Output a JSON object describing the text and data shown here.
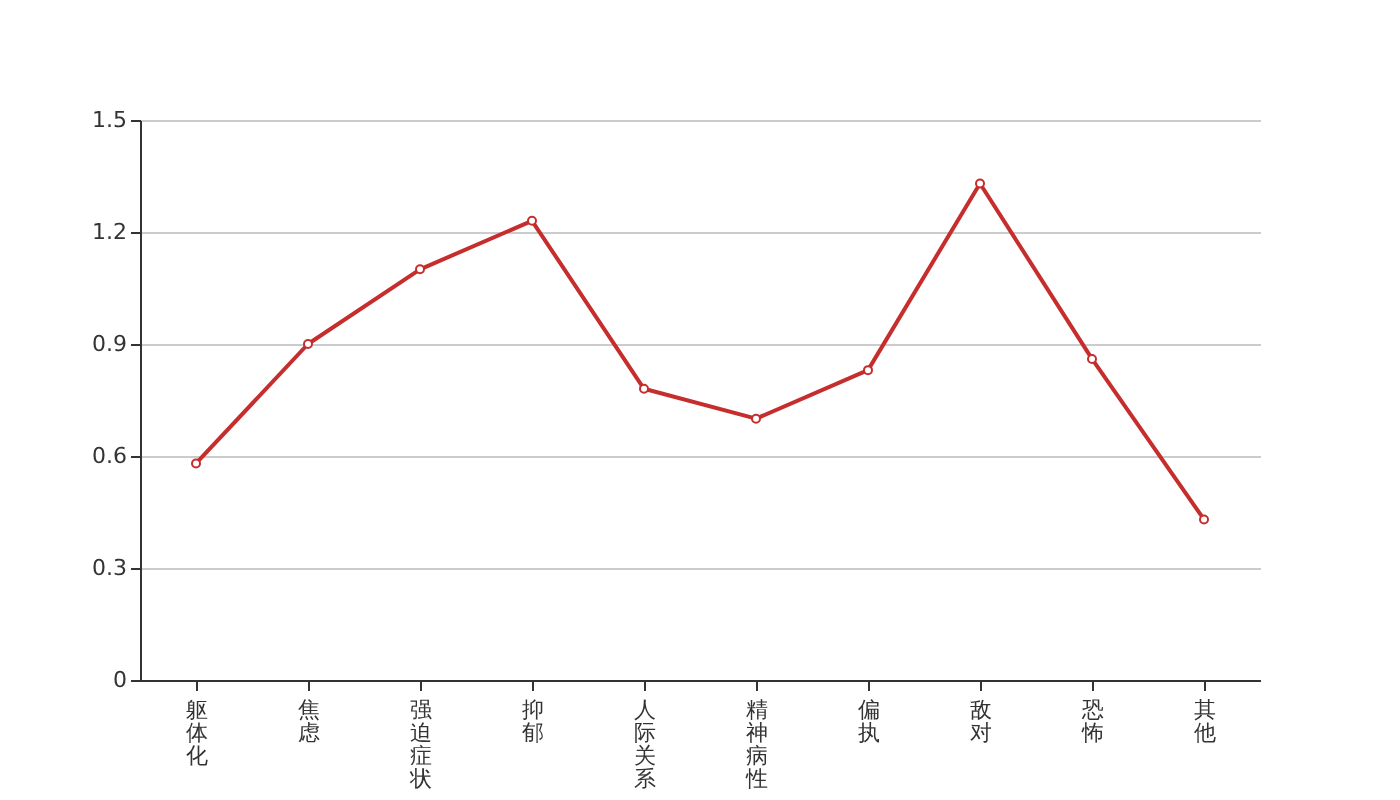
{
  "chart_data": {
    "type": "line",
    "categories": [
      "躯体化",
      "焦虑",
      "强迫症状",
      "抑郁",
      "人际关系",
      "精神病性",
      "偏执",
      "敌对",
      "恐怖",
      "其他"
    ],
    "series": [
      {
        "color": "#c62d2d",
        "values": [
          0.58,
          0.9,
          1.1,
          1.23,
          0.78,
          0.7,
          0.83,
          1.33,
          0.86,
          0.43
        ]
      }
    ],
    "ylim": [
      0,
      1.5
    ],
    "yticks": [
      0,
      0.3,
      0.6,
      0.9,
      1.2,
      1.5
    ],
    "grid": "y",
    "marker": "circle",
    "legend": false
  }
}
